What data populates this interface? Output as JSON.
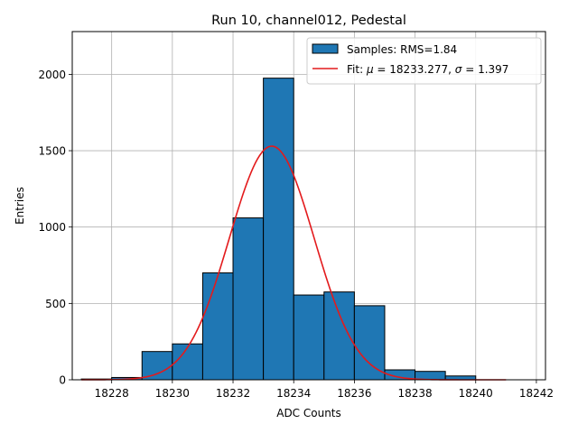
{
  "chart_data": {
    "type": "bar",
    "title": "Run 10, channel012, Pedestal",
    "xlabel": "ADC Counts",
    "ylabel": "Entries",
    "xlim": [
      18226.7,
      18242.3
    ],
    "ylim": [
      0,
      2280
    ],
    "xticks": [
      18228,
      18230,
      18232,
      18234,
      18236,
      18238,
      18240,
      18242
    ],
    "yticks": [
      0,
      500,
      1000,
      1500,
      2000
    ],
    "grid": true,
    "legend_position": "top-right",
    "histogram": {
      "name": "Samples: RMS=1.84",
      "color": "#1f77b4",
      "bin_edges": [
        18227,
        18228,
        18229,
        18230,
        18231,
        18232,
        18233,
        18234,
        18235,
        18236,
        18237,
        18238,
        18239,
        18240,
        18241
      ],
      "counts": [
        5,
        15,
        185,
        235,
        700,
        1060,
        1975,
        555,
        575,
        485,
        65,
        55,
        25,
        0
      ]
    },
    "fit": {
      "name_prefix": "Fit: ",
      "name_mu_symbol": "μ",
      "name_mu_text": " = 18233.277, ",
      "name_sigma_symbol": "σ",
      "name_sigma_text": " = 1.397",
      "color": "#e31a1c",
      "mu": 18233.277,
      "sigma": 1.397,
      "amplitude": 1530,
      "x_range": [
        18227,
        18241
      ]
    }
  }
}
